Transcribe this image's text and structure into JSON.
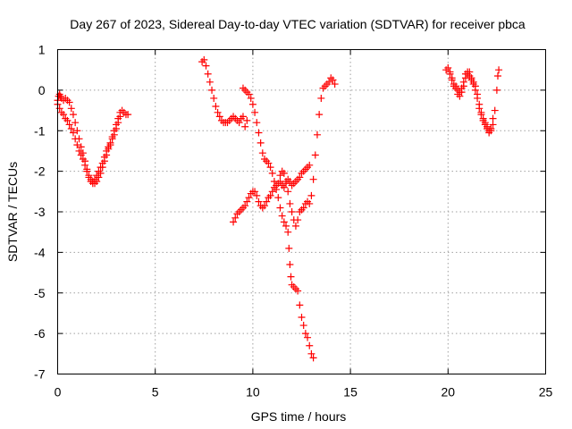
{
  "chart_data": {
    "type": "scatter",
    "title": "Day 267 of 2023, Sidereal Day-to-day VTEC variation (SDTVAR) for receiver pbca",
    "xlabel": "GPS time / hours",
    "ylabel": "SDTVAR / TECUs",
    "xlim": [
      0,
      25
    ],
    "ylim": [
      -7,
      1
    ],
    "xticks": [
      "0",
      "5",
      "10",
      "15",
      "20",
      "25"
    ],
    "yticks": [
      "1",
      "0",
      "-1",
      "-2",
      "-3",
      "-4",
      "-5",
      "-6",
      "-7"
    ],
    "grid": true,
    "marker": "plus",
    "color": "#ff0000",
    "series": [
      {
        "points": [
          [
            0.0,
            -0.25
          ],
          [
            0.05,
            -0.15
          ],
          [
            0.1,
            -0.1
          ],
          [
            0.15,
            -0.15
          ],
          [
            0.2,
            -0.2
          ],
          [
            0.3,
            -0.25
          ],
          [
            0.4,
            -0.2
          ],
          [
            0.5,
            -0.25
          ],
          [
            0.6,
            -0.3
          ],
          [
            0.7,
            -0.45
          ],
          [
            0.8,
            -0.6
          ],
          [
            0.9,
            -0.8
          ],
          [
            1.0,
            -1.0
          ],
          [
            1.1,
            -1.2
          ],
          [
            1.2,
            -1.4
          ],
          [
            1.3,
            -1.55
          ],
          [
            1.4,
            -1.75
          ],
          [
            1.5,
            -1.95
          ],
          [
            1.6,
            -2.1
          ],
          [
            1.7,
            -2.2
          ],
          [
            1.8,
            -2.25
          ],
          [
            1.9,
            -2.2
          ],
          [
            2.0,
            -2.1
          ],
          [
            2.1,
            -2.0
          ],
          [
            2.2,
            -1.9
          ],
          [
            2.3,
            -1.8
          ],
          [
            2.4,
            -1.65
          ],
          [
            2.5,
            -1.5
          ],
          [
            2.6,
            -1.4
          ],
          [
            2.7,
            -1.3
          ],
          [
            2.8,
            -1.15
          ],
          [
            2.9,
            -1.0
          ],
          [
            3.0,
            -0.85
          ],
          [
            3.1,
            -0.7
          ],
          [
            3.2,
            -0.55
          ],
          [
            3.3,
            -0.5
          ],
          [
            3.4,
            -0.55
          ],
          [
            3.5,
            -0.6
          ],
          [
            3.6,
            -0.6
          ],
          [
            0.0,
            -0.35
          ],
          [
            0.1,
            -0.45
          ],
          [
            0.2,
            -0.55
          ],
          [
            0.3,
            -0.6
          ],
          [
            0.4,
            -0.7
          ],
          [
            0.5,
            -0.75
          ],
          [
            0.6,
            -0.85
          ],
          [
            0.7,
            -0.95
          ],
          [
            0.8,
            -1.05
          ],
          [
            0.9,
            -1.2
          ],
          [
            1.0,
            -1.35
          ],
          [
            1.1,
            -1.5
          ],
          [
            1.2,
            -1.6
          ],
          [
            1.3,
            -1.7
          ],
          [
            1.4,
            -1.85
          ],
          [
            1.5,
            -2.0
          ],
          [
            1.6,
            -2.15
          ],
          [
            1.7,
            -2.25
          ],
          [
            1.8,
            -2.3
          ],
          [
            1.9,
            -2.3
          ],
          [
            2.0,
            -2.25
          ],
          [
            2.1,
            -2.15
          ],
          [
            2.2,
            -2.05
          ],
          [
            2.3,
            -1.9
          ],
          [
            2.4,
            -1.75
          ],
          [
            2.5,
            -1.6
          ],
          [
            2.6,
            -1.45
          ],
          [
            2.7,
            -1.35
          ],
          [
            2.8,
            -1.2
          ],
          [
            2.9,
            -1.1
          ],
          [
            3.0,
            -0.95
          ],
          [
            3.1,
            -0.8
          ],
          [
            3.2,
            -0.65
          ],
          [
            7.4,
            0.7
          ],
          [
            7.5,
            0.75
          ],
          [
            7.6,
            0.6
          ],
          [
            7.7,
            0.4
          ],
          [
            7.8,
            0.2
          ],
          [
            7.9,
            0.0
          ],
          [
            8.0,
            -0.2
          ],
          [
            8.1,
            -0.4
          ],
          [
            8.2,
            -0.55
          ],
          [
            8.3,
            -0.65
          ],
          [
            8.4,
            -0.75
          ],
          [
            8.5,
            -0.8
          ],
          [
            8.6,
            -0.8
          ],
          [
            8.7,
            -0.8
          ],
          [
            8.8,
            -0.75
          ],
          [
            8.9,
            -0.7
          ],
          [
            9.0,
            -0.65
          ],
          [
            9.1,
            -0.7
          ],
          [
            9.2,
            -0.75
          ],
          [
            9.3,
            -0.8
          ],
          [
            9.4,
            -0.7
          ],
          [
            9.5,
            -0.65
          ],
          [
            9.6,
            -0.9
          ],
          [
            9.7,
            -0.75
          ],
          [
            9.5,
            0.05
          ],
          [
            9.6,
            0.0
          ],
          [
            9.7,
            -0.05
          ],
          [
            9.8,
            -0.1
          ],
          [
            9.9,
            -0.2
          ],
          [
            10.0,
            -0.35
          ],
          [
            10.1,
            -0.55
          ],
          [
            10.2,
            -0.8
          ],
          [
            10.3,
            -1.05
          ],
          [
            10.4,
            -1.3
          ],
          [
            10.5,
            -1.55
          ],
          [
            10.6,
            -1.7
          ],
          [
            10.7,
            -1.75
          ],
          [
            10.8,
            -1.8
          ],
          [
            10.9,
            -1.9
          ],
          [
            11.0,
            -2.05
          ],
          [
            11.1,
            -2.25
          ],
          [
            11.2,
            -2.45
          ],
          [
            11.3,
            -2.65
          ],
          [
            11.4,
            -2.9
          ],
          [
            11.5,
            -3.1
          ],
          [
            11.6,
            -3.25
          ],
          [
            11.7,
            -3.35
          ],
          [
            11.8,
            -3.5
          ],
          [
            11.85,
            -3.9
          ],
          [
            11.9,
            -4.3
          ],
          [
            11.95,
            -4.6
          ],
          [
            12.0,
            -4.8
          ],
          [
            12.1,
            -4.85
          ],
          [
            12.2,
            -4.9
          ],
          [
            12.3,
            -4.95
          ],
          [
            12.4,
            -5.3
          ],
          [
            12.5,
            -5.6
          ],
          [
            12.6,
            -5.8
          ],
          [
            12.7,
            -6.0
          ],
          [
            12.8,
            -6.1
          ],
          [
            12.9,
            -6.3
          ],
          [
            13.0,
            -6.5
          ],
          [
            13.1,
            -6.6
          ],
          [
            9.0,
            -3.25
          ],
          [
            9.1,
            -3.15
          ],
          [
            9.2,
            -3.05
          ],
          [
            9.3,
            -3.0
          ],
          [
            9.4,
            -2.95
          ],
          [
            9.5,
            -2.9
          ],
          [
            9.6,
            -2.85
          ],
          [
            9.7,
            -2.75
          ],
          [
            9.8,
            -2.65
          ],
          [
            9.9,
            -2.55
          ],
          [
            10.0,
            -2.5
          ],
          [
            10.1,
            -2.5
          ],
          [
            10.2,
            -2.6
          ],
          [
            10.3,
            -2.75
          ],
          [
            10.4,
            -2.85
          ],
          [
            10.5,
            -2.9
          ],
          [
            10.6,
            -2.85
          ],
          [
            10.7,
            -2.75
          ],
          [
            10.8,
            -2.65
          ],
          [
            10.9,
            -2.6
          ],
          [
            11.0,
            -2.5
          ],
          [
            11.1,
            -2.4
          ],
          [
            11.2,
            -2.35
          ],
          [
            11.3,
            -2.3
          ],
          [
            11.4,
            -2.25
          ],
          [
            11.5,
            -2.35
          ],
          [
            11.6,
            -2.4
          ],
          [
            11.7,
            -2.3
          ],
          [
            11.8,
            -2.2
          ],
          [
            11.9,
            -2.25
          ],
          [
            12.0,
            -2.35
          ],
          [
            12.1,
            -2.3
          ],
          [
            12.2,
            -2.25
          ],
          [
            12.3,
            -2.2
          ],
          [
            12.4,
            -2.15
          ],
          [
            12.5,
            -2.05
          ],
          [
            12.6,
            -2.0
          ],
          [
            12.7,
            -1.95
          ],
          [
            12.8,
            -1.9
          ],
          [
            12.9,
            -1.85
          ],
          [
            11.4,
            -2.1
          ],
          [
            11.5,
            -2.0
          ],
          [
            11.6,
            -2.05
          ],
          [
            11.7,
            -2.25
          ],
          [
            11.8,
            -2.5
          ],
          [
            11.9,
            -2.8
          ],
          [
            12.0,
            -3.0
          ],
          [
            12.1,
            -3.2
          ],
          [
            12.2,
            -3.35
          ],
          [
            12.3,
            -3.2
          ],
          [
            12.4,
            -3.0
          ],
          [
            12.5,
            -2.95
          ],
          [
            12.6,
            -2.9
          ],
          [
            12.7,
            -2.8
          ],
          [
            12.8,
            -2.75
          ],
          [
            12.9,
            -2.8
          ],
          [
            13.0,
            -2.6
          ],
          [
            13.1,
            -2.2
          ],
          [
            13.2,
            -1.6
          ],
          [
            13.3,
            -1.1
          ],
          [
            13.4,
            -0.6
          ],
          [
            13.5,
            -0.2
          ],
          [
            13.6,
            0.05
          ],
          [
            13.7,
            0.1
          ],
          [
            13.8,
            0.15
          ],
          [
            13.9,
            0.2
          ],
          [
            14.0,
            0.3
          ],
          [
            14.1,
            0.25
          ],
          [
            14.2,
            0.15
          ],
          [
            19.9,
            0.5
          ],
          [
            20.0,
            0.55
          ],
          [
            20.1,
            0.45
          ],
          [
            20.2,
            0.3
          ],
          [
            20.3,
            0.15
          ],
          [
            20.4,
            0.1
          ],
          [
            20.5,
            0.0
          ],
          [
            20.6,
            -0.05
          ],
          [
            20.7,
            0.05
          ],
          [
            20.8,
            0.2
          ],
          [
            20.9,
            0.4
          ],
          [
            21.0,
            0.45
          ],
          [
            21.1,
            0.35
          ],
          [
            21.2,
            0.25
          ],
          [
            21.3,
            0.2
          ],
          [
            21.4,
            0.1
          ],
          [
            21.5,
            -0.1
          ],
          [
            21.6,
            -0.35
          ],
          [
            21.7,
            -0.55
          ],
          [
            21.8,
            -0.7
          ],
          [
            21.9,
            -0.8
          ],
          [
            22.0,
            -0.9
          ],
          [
            22.1,
            -1.0
          ],
          [
            22.2,
            -1.0
          ],
          [
            22.3,
            -0.85
          ],
          [
            22.4,
            -0.5
          ],
          [
            22.5,
            0.0
          ],
          [
            22.55,
            0.35
          ],
          [
            22.6,
            0.5
          ],
          [
            20.1,
            0.4
          ],
          [
            20.2,
            0.25
          ],
          [
            20.3,
            0.1
          ],
          [
            20.4,
            0.05
          ],
          [
            20.5,
            -0.1
          ],
          [
            20.6,
            -0.15
          ],
          [
            20.7,
            -0.05
          ],
          [
            20.8,
            0.1
          ],
          [
            20.9,
            0.3
          ],
          [
            21.0,
            0.4
          ],
          [
            21.1,
            0.45
          ],
          [
            21.2,
            0.3
          ],
          [
            21.3,
            0.15
          ],
          [
            21.4,
            0.0
          ],
          [
            21.5,
            -0.2
          ],
          [
            21.6,
            -0.45
          ],
          [
            21.7,
            -0.6
          ],
          [
            21.8,
            -0.75
          ],
          [
            21.9,
            -0.85
          ],
          [
            22.0,
            -0.95
          ],
          [
            22.1,
            -1.05
          ],
          [
            22.2,
            -0.95
          ],
          [
            22.3,
            -0.7
          ]
        ]
      }
    ]
  }
}
